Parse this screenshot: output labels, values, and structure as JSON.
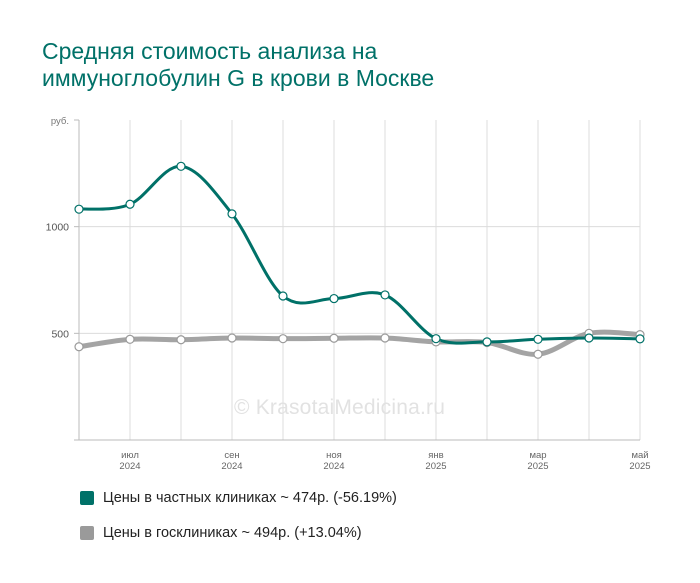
{
  "title_lines": [
    "Средняя стоимость анализа на",
    "иммуноглобулин G в крови в Москве"
  ],
  "watermark": "© KrasotaiMedicina.ru",
  "colors": {
    "private": "#007168",
    "public": "#9a9a9a",
    "title": "#007168"
  },
  "legend": [
    {
      "label": "Цены в частных клиниках ~ 474р. (-56.19%)",
      "color": "#007168"
    },
    {
      "label": "Цены в госклиниках ~ 494р. (+13.04%)",
      "color": "#9a9a9a"
    }
  ],
  "chart_data": {
    "type": "line",
    "y_unit_label": "руб.",
    "ylim": [
      0,
      1500
    ],
    "yticks": [
      500,
      1000
    ],
    "x": [
      "2024-06",
      "2024-07",
      "2024-08",
      "2024-09",
      "2024-10",
      "2024-11",
      "2024-12",
      "2025-01",
      "2025-02",
      "2025-03",
      "2025-04",
      "2025-05"
    ],
    "x_tick_labels": [
      {
        "month": "",
        "year": ""
      },
      {
        "month": "июл",
        "year": "2024"
      },
      {
        "month": "",
        "year": ""
      },
      {
        "month": "сен",
        "year": "2024"
      },
      {
        "month": "",
        "year": ""
      },
      {
        "month": "ноя",
        "year": "2024"
      },
      {
        "month": "",
        "year": ""
      },
      {
        "month": "янв",
        "year": "2025"
      },
      {
        "month": "",
        "year": ""
      },
      {
        "month": "мар",
        "year": "2025"
      },
      {
        "month": "",
        "year": ""
      },
      {
        "month": "май",
        "year": "2025"
      }
    ],
    "grid": true,
    "series": [
      {
        "name": "Цены в частных клиниках",
        "color": "#007168",
        "values": [
          1082,
          1105,
          1283,
          1060,
          675,
          663,
          680,
          475,
          460,
          472,
          478,
          474
        ]
      },
      {
        "name": "Цены в госклиниках",
        "color": "#9a9a9a",
        "values": [
          437,
          472,
          470,
          478,
          475,
          477,
          478,
          460,
          457,
          402,
          500,
          494
        ]
      }
    ]
  }
}
